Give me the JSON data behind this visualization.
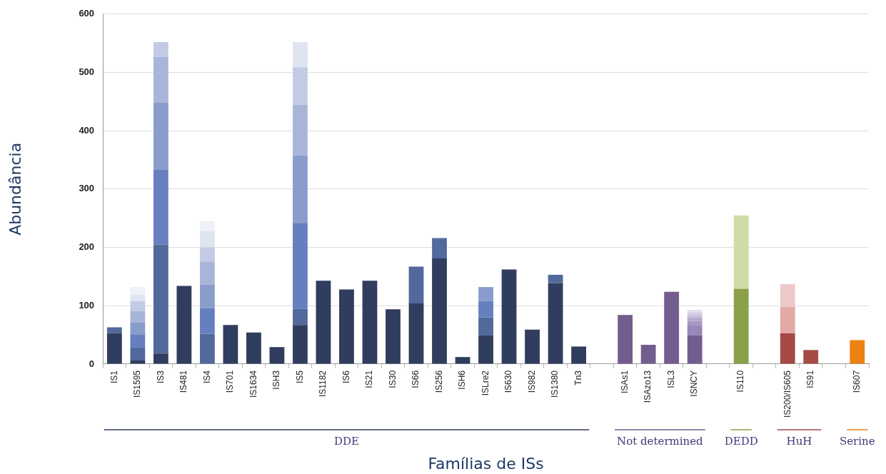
{
  "chart_data": {
    "type": "bar",
    "stacked": true,
    "xlabel": "Famílias de ISs",
    "ylabel": "Abundância",
    "categories": [
      "IS1",
      "IS1595",
      "IS3",
      "IS481",
      "IS4",
      "IS701",
      "IS1634",
      "ISH3",
      "IS5",
      "IS1182",
      "IS6",
      "IS21",
      "IS30",
      "IS66",
      "IS256",
      "ISH6",
      "ISLre2",
      "IS630",
      "IS982",
      "IS1380",
      "Tn3",
      null,
      "ISAs1",
      "ISAzo13",
      "ISL3",
      "ISNCY",
      null,
      "IS110",
      null,
      "IS200/IS605",
      "IS91",
      null,
      "IS607"
    ],
    "series": [
      {
        "values": [
          53,
          6,
          18,
          134,
          52,
          67,
          54,
          29,
          67,
          143,
          128,
          143,
          94,
          104,
          181,
          12,
          49,
          162,
          59,
          139,
          30,
          null,
          84,
          33,
          124,
          49,
          null,
          129,
          null,
          53,
          24,
          null,
          41
        ],
        "colors": [
          "#313d5e",
          "#313d5e",
          "#313d5e",
          "#313d5e",
          "#52699c",
          "#313d5e",
          "#313d5e",
          "#313d5e",
          "#313d5e",
          "#313d5e",
          "#313d5e",
          "#313d5e",
          "#313d5e",
          "#313d5e",
          "#313d5e",
          "#313d5e",
          "#313d5e",
          "#313d5e",
          "#313d5e",
          "#313d5e",
          "#313d5e",
          null,
          "#735d8e",
          "#735d8e",
          "#735d8e",
          "#735d8e",
          null,
          "#8aa14a",
          null,
          "#a54a45",
          "#a54a45",
          null,
          "#ec8311"
        ]
      },
      {
        "values": [
          10,
          23,
          187,
          null,
          44,
          null,
          null,
          null,
          28,
          null,
          null,
          null,
          null,
          63,
          32,
          null,
          31,
          null,
          null,
          14,
          null,
          null,
          null,
          null,
          null,
          17,
          null,
          126,
          null,
          45,
          null,
          null,
          null
        ],
        "colors": [
          "#52699c",
          "#52699c",
          "#52699c",
          null,
          "#6680bf",
          null,
          null,
          null,
          "#52699c",
          null,
          null,
          null,
          null,
          "#52699c",
          "#52699c",
          null,
          "#52699c",
          null,
          null,
          "#52699c",
          null,
          null,
          null,
          null,
          null,
          "#9a86b8",
          null,
          "#cfdca8",
          null,
          "#e2a9a7",
          null,
          null,
          null
        ]
      },
      {
        "values": [
          null,
          21,
          128,
          null,
          40,
          null,
          null,
          null,
          147,
          null,
          null,
          null,
          null,
          null,
          3,
          null,
          28,
          null,
          null,
          null,
          null,
          null,
          null,
          null,
          null,
          8,
          null,
          null,
          null,
          39,
          null,
          null,
          null
        ],
        "colors": [
          null,
          "#6680bf",
          "#6680bf",
          null,
          "#8a9ccb",
          null,
          null,
          null,
          "#6680bf",
          null,
          null,
          null,
          null,
          null,
          "#52699c",
          null,
          "#6680bf",
          null,
          null,
          null,
          null,
          null,
          null,
          null,
          null,
          "#a996c2",
          null,
          null,
          null,
          "#eec9c9",
          null,
          null,
          null
        ]
      },
      {
        "values": [
          null,
          21,
          115,
          null,
          39,
          null,
          null,
          null,
          116,
          null,
          null,
          null,
          null,
          null,
          null,
          null,
          24,
          null,
          null,
          null,
          null,
          null,
          null,
          null,
          null,
          6,
          null,
          null,
          null,
          null,
          null,
          null,
          null
        ],
        "colors": [
          null,
          "#8a9ccb",
          "#8a9ccb",
          null,
          "#a9b5d8",
          null,
          null,
          null,
          "#8a9ccb",
          null,
          null,
          null,
          null,
          null,
          null,
          null,
          "#8a9ccb",
          null,
          null,
          null,
          null,
          null,
          null,
          null,
          null,
          "#b8a9cd",
          null,
          null,
          null,
          null,
          null,
          null,
          null
        ]
      },
      {
        "values": [
          null,
          20,
          79,
          null,
          25,
          null,
          null,
          null,
          87,
          null,
          null,
          null,
          null,
          null,
          null,
          null,
          null,
          null,
          null,
          null,
          null,
          null,
          null,
          null,
          null,
          4,
          null,
          null,
          null,
          null,
          null,
          null,
          null
        ],
        "colors": [
          null,
          "#a9b5d8",
          "#a9b5d8",
          null,
          "#c3cbe4",
          null,
          null,
          null,
          "#a9b5d8",
          null,
          null,
          null,
          null,
          null,
          null,
          null,
          null,
          null,
          null,
          null,
          null,
          null,
          null,
          null,
          null,
          "#c8bcd9",
          null,
          null,
          null,
          null,
          null,
          null,
          null
        ]
      },
      {
        "values": [
          null,
          17,
          25,
          null,
          28,
          null,
          null,
          null,
          64,
          null,
          null,
          null,
          null,
          null,
          null,
          null,
          null,
          null,
          null,
          null,
          null,
          null,
          null,
          null,
          null,
          4,
          null,
          null,
          null,
          null,
          null,
          null,
          null
        ],
        "colors": [
          null,
          "#c3cbe4",
          "#c3cbe4",
          null,
          "#dfe4f1",
          null,
          null,
          null,
          "#c3cbe4",
          null,
          null,
          null,
          null,
          null,
          null,
          null,
          null,
          null,
          null,
          null,
          null,
          null,
          null,
          null,
          null,
          "#d5cce3",
          null,
          null,
          null,
          null,
          null,
          null,
          null
        ]
      },
      {
        "values": [
          null,
          11,
          null,
          null,
          17,
          null,
          null,
          null,
          43,
          null,
          null,
          null,
          null,
          null,
          null,
          null,
          null,
          null,
          null,
          null,
          null,
          null,
          null,
          null,
          null,
          5,
          null,
          null,
          null,
          null,
          null,
          null,
          null
        ],
        "colors": [
          null,
          "#dfe4f1",
          null,
          null,
          "#eef1f8",
          null,
          null,
          null,
          "#dfe4f1",
          null,
          null,
          null,
          null,
          null,
          null,
          null,
          null,
          null,
          null,
          null,
          null,
          null,
          null,
          null,
          null,
          "#e3dded",
          null,
          null,
          null,
          null,
          null,
          null,
          null
        ]
      },
      {
        "values": [
          null,
          13,
          null,
          null,
          null,
          null,
          null,
          null,
          null,
          null,
          null,
          null,
          null,
          null,
          null,
          null,
          null,
          null,
          null,
          null,
          null,
          null,
          null,
          null,
          null,
          null,
          null,
          null,
          null,
          null,
          null,
          null,
          null
        ],
        "colors": [
          null,
          "#eef1f8",
          null,
          null,
          null,
          null,
          null,
          null,
          null,
          null,
          null,
          null,
          null,
          null,
          null,
          null,
          null,
          null,
          null,
          null,
          null,
          null,
          null,
          null,
          null,
          null,
          null,
          null,
          null,
          null,
          null,
          null,
          null
        ]
      }
    ],
    "ylim": [
      0,
      600
    ],
    "yticks": [
      0,
      100,
      200,
      300,
      400,
      500,
      600
    ],
    "grid": "y",
    "annotations": [
      "DDE",
      "Not determined",
      "DEDD",
      "HuH",
      "Serine"
    ]
  }
}
